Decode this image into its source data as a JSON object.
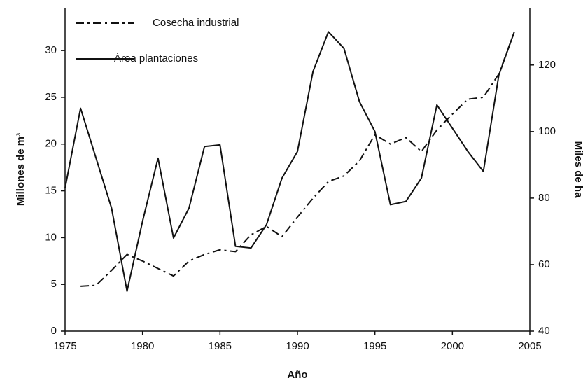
{
  "chart_data": {
    "type": "line",
    "x": [
      1975,
      1976,
      1977,
      1978,
      1979,
      1980,
      1981,
      1982,
      1983,
      1984,
      1985,
      1986,
      1987,
      1988,
      1989,
      1990,
      1991,
      1992,
      1993,
      1994,
      1995,
      1996,
      1997,
      1998,
      1999,
      2000,
      2001,
      2002,
      2003,
      2004
    ],
    "series": [
      {
        "name": "Cosecha industrial",
        "color": "#111111",
        "dash": "dashdot",
        "values": [
          null,
          4.8,
          4.9,
          6.5,
          8.2,
          7.5,
          6.7,
          5.9,
          7.5,
          8.2,
          8.7,
          8.5,
          10.3,
          11.2,
          10.1,
          12.2,
          14.2,
          16.0,
          16.6,
          18.2,
          21.0,
          20.0,
          20.7,
          19.2,
          21.5,
          23.2,
          24.8,
          25.0,
          27.5,
          32.0
        ]
      },
      {
        "name": "Área plantaciones",
        "color": "#111111",
        "dash": "solid",
        "axis": "y2",
        "values": [
          83,
          107,
          92,
          77,
          52,
          73,
          92,
          68,
          77,
          95.5,
          96,
          65.5,
          65,
          72,
          86,
          94,
          118,
          130,
          125,
          109,
          100,
          78,
          79,
          86,
          108,
          101,
          94,
          88,
          117,
          130
        ]
      }
    ],
    "xlabel": "Año",
    "ylabel": "Millones de m³",
    "y2label": "Miles de ha",
    "xlim": [
      1975,
      2005
    ],
    "xticks": [
      1975,
      1980,
      1985,
      1990,
      1995,
      2000,
      2005
    ],
    "ylim": [
      0,
      34.5
    ],
    "yticks": [
      0,
      5,
      10,
      15,
      20,
      25,
      30
    ],
    "y2lim": [
      40,
      137
    ],
    "y2ticks": [
      40,
      60,
      80,
      100,
      120
    ],
    "legend": "upper left"
  }
}
